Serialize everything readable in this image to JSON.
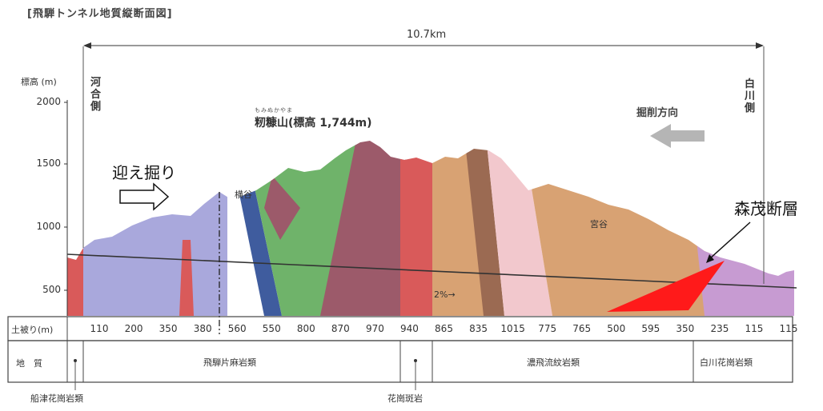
{
  "title": "[飛騨トンネル地質縦断面図]",
  "distance_label": "10.7km",
  "y_axis": {
    "label": "標高 (m)",
    "ticks": [
      "2000",
      "1500",
      "1000",
      "500"
    ]
  },
  "ends": {
    "left": "河合側",
    "right": "白川側"
  },
  "peak": {
    "ruby": "もみぬかやま",
    "label": "籾糠山(標高 1,744m)"
  },
  "direction_label": "掘削方向",
  "annotations": {
    "mukae": "迎え掘り",
    "fault": "森茂断層",
    "yokoya": "横谷",
    "miyagi": "宮谷",
    "gradient": "2%→"
  },
  "cover_row": {
    "label": "土被り(m)",
    "values": [
      "110",
      "200",
      "350",
      "380",
      "560",
      "550",
      "800",
      "870",
      "970",
      "940",
      "865",
      "835",
      "1015",
      "775",
      "765",
      "500",
      "595",
      "350",
      "235",
      "115",
      "115"
    ]
  },
  "geology_row": {
    "label": "地　質",
    "units": [
      "飛騨片麻岩類",
      "濃飛流紋岩類",
      "白川花崗岩類"
    ]
  },
  "below_labels": [
    "船津花崗岩類",
    "花崗斑岩"
  ],
  "colors": {
    "gneiss": "#a9a8dc",
    "granite_red": "#d95a5a",
    "green": "#6fb36a",
    "maroon": "#9c5a6a",
    "orange": "#d8a273",
    "pink": "#f2c8cd",
    "purple": "#c79bd2",
    "blue_fault": "#3f5c9e",
    "fault_red": "#ff1a1a"
  }
}
